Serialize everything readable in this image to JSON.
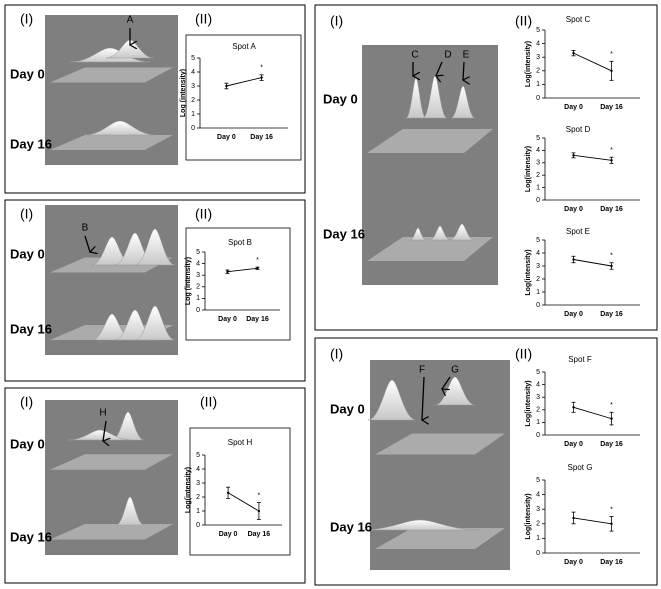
{
  "panels": [
    {
      "label_left": "(I)",
      "label_right": "(II)",
      "image_labels": [
        "Day 0",
        "Day 16"
      ],
      "arrows": [
        "A"
      ]
    },
    {
      "label_left": "(I)",
      "label_right": "(II)",
      "image_labels": [
        "Day 0",
        "Day 16"
      ],
      "arrows": [
        "B"
      ]
    },
    {
      "label_left": "(I)",
      "label_right": "(II)",
      "image_labels": [
        "Day 0",
        "Day 16"
      ],
      "arrows": [
        "H"
      ]
    },
    {
      "label_left": "(I)",
      "label_right": "(II)",
      "image_labels": [
        "Day 0",
        "Day 16"
      ],
      "arrows": [
        "C",
        "D",
        "E"
      ]
    },
    {
      "label_left": "(I)",
      "label_right": "(II)",
      "image_labels": [
        "Day 0",
        "Day 16"
      ],
      "arrows": [
        "F",
        "G"
      ]
    }
  ],
  "chart_data": [
    {
      "type": "line",
      "title": "Spot A",
      "y_label": "Log (intensity)",
      "categories": [
        "Day 0",
        "Day 16"
      ],
      "values": [
        3.0,
        3.6
      ],
      "errors": [
        0.2,
        0.2
      ],
      "annotation": "*",
      "ylim": [
        0,
        5
      ],
      "yticks": [
        0,
        1,
        2,
        3,
        4,
        5
      ],
      "color": "#000000"
    },
    {
      "type": "line",
      "title": "Spot B",
      "y_label": "Log (intensity)",
      "categories": [
        "Day 0",
        "Day 16"
      ],
      "values": [
        3.3,
        3.6
      ],
      "errors": [
        0.15,
        0.1
      ],
      "annotation": "*",
      "ylim": [
        0,
        5
      ],
      "yticks": [
        0,
        1,
        2,
        3,
        4,
        5
      ],
      "color": "#000000"
    },
    {
      "type": "line",
      "title": "Spot H",
      "y_label": "Log(intensity)",
      "categories": [
        "Day 0",
        "Day 16"
      ],
      "values": [
        2.3,
        1.0
      ],
      "errors": [
        0.4,
        0.6
      ],
      "annotation": "*",
      "ylim": [
        0,
        5
      ],
      "yticks": [
        0,
        1,
        2,
        3,
        4,
        5
      ],
      "color": "#000000"
    },
    {
      "type": "line",
      "title": "Spot C",
      "y_label": "Log(intensity)",
      "categories": [
        "Day 0",
        "Day 16"
      ],
      "values": [
        3.3,
        2.0
      ],
      "errors": [
        0.2,
        0.7
      ],
      "annotation": "*",
      "ylim": [
        0,
        5
      ],
      "yticks": [
        0,
        1,
        2,
        3,
        4,
        5
      ],
      "color": "#000000"
    },
    {
      "type": "line",
      "title": "Spot D",
      "y_label": "Log(intensity)",
      "categories": [
        "Day 0",
        "Day 16"
      ],
      "values": [
        3.6,
        3.2
      ],
      "errors": [
        0.2,
        0.25
      ],
      "annotation": "*",
      "ylim": [
        0,
        5
      ],
      "yticks": [
        0,
        1,
        2,
        3,
        4,
        5
      ],
      "color": "#000000"
    },
    {
      "type": "line",
      "title": "Spot E",
      "y_label": "Log(intensity)",
      "categories": [
        "Day 0",
        "Day 16"
      ],
      "values": [
        3.5,
        3.0
      ],
      "errors": [
        0.25,
        0.25
      ],
      "annotation": "*",
      "ylim": [
        0,
        5
      ],
      "yticks": [
        0,
        1,
        2,
        3,
        4,
        5
      ],
      "color": "#000000"
    },
    {
      "type": "line",
      "title": "Spot F",
      "y_label": "Log(intensity)",
      "categories": [
        "Day 0",
        "Day 16"
      ],
      "values": [
        2.2,
        1.3
      ],
      "errors": [
        0.4,
        0.5
      ],
      "annotation": "*",
      "ylim": [
        0,
        5
      ],
      "yticks": [
        0,
        1,
        2,
        3,
        4,
        5
      ],
      "color": "#000000"
    },
    {
      "type": "line",
      "title": "Spot G",
      "y_label": "Log(intensity)",
      "categories": [
        "Day 0",
        "Day 16"
      ],
      "values": [
        2.4,
        2.0
      ],
      "errors": [
        0.4,
        0.5
      ],
      "annotation": "*",
      "ylim": [
        0,
        5
      ],
      "yticks": [
        0,
        1,
        2,
        3,
        4,
        5
      ],
      "color": "#000000"
    }
  ]
}
